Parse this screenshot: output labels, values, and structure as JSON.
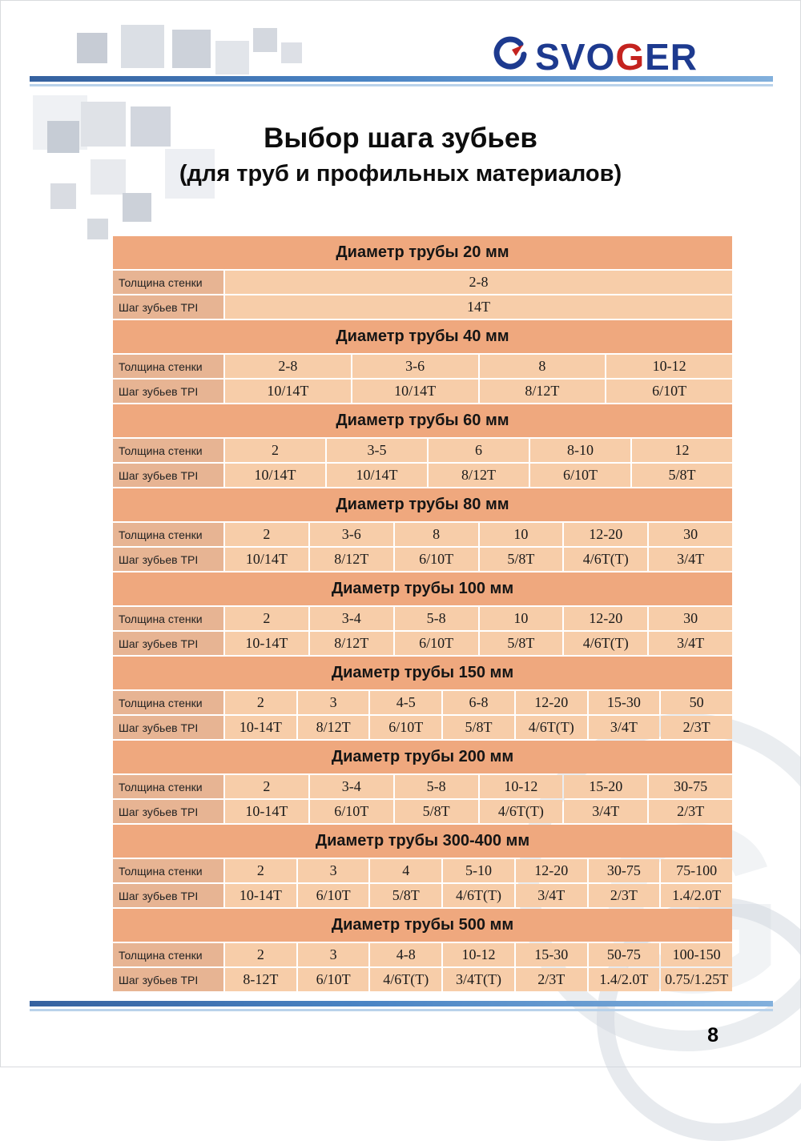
{
  "logo": {
    "part1": "SVO",
    "part2": "G",
    "part3": "ER"
  },
  "title": {
    "line1": "Выбор шага зубьев",
    "line2": "(для труб и профильных материалов)"
  },
  "labels": {
    "thickness": "Толщина стенки",
    "tpi": "Шаг зубьев TPI"
  },
  "tables": [
    {
      "title": "Диаметр трубы 20 мм",
      "thickness": [
        "2-8"
      ],
      "tpi": [
        "14T"
      ]
    },
    {
      "title": "Диаметр трубы 40 мм",
      "thickness": [
        "2-8",
        "3-6",
        "8",
        "10-12"
      ],
      "tpi": [
        "10/14T",
        "10/14T",
        "8/12T",
        "6/10T"
      ]
    },
    {
      "title": "Диаметр трубы 60 мм",
      "thickness": [
        "2",
        "3-5",
        "6",
        "8-10",
        "12"
      ],
      "tpi": [
        "10/14T",
        "10/14T",
        "8/12T",
        "6/10T",
        "5/8T"
      ]
    },
    {
      "title": "Диаметр трубы 80 мм",
      "thickness": [
        "2",
        "3-6",
        "8",
        "10",
        "12-20",
        "30"
      ],
      "tpi": [
        "10/14T",
        "8/12T",
        "6/10T",
        "5/8T",
        "4/6T(T)",
        "3/4T"
      ]
    },
    {
      "title": "Диаметр трубы 100 мм",
      "thickness": [
        "2",
        "3-4",
        "5-8",
        "10",
        "12-20",
        "30"
      ],
      "tpi": [
        "10-14T",
        "8/12T",
        "6/10T",
        "5/8T",
        "4/6T(T)",
        "3/4T"
      ]
    },
    {
      "title": "Диаметр трубы 150 мм",
      "thickness": [
        "2",
        "3",
        "4-5",
        "6-8",
        "12-20",
        "15-30",
        "50"
      ],
      "tpi": [
        "10-14T",
        "8/12T",
        "6/10T",
        "5/8T",
        "4/6T(T)",
        "3/4T",
        "2/3T"
      ]
    },
    {
      "title": "Диаметр трубы 200 мм",
      "thickness": [
        "2",
        "3-4",
        "5-8",
        "10-12",
        "15-20",
        "30-75"
      ],
      "tpi": [
        "10-14T",
        "6/10T",
        "5/8T",
        "4/6T(T)",
        "3/4T",
        "2/3T"
      ]
    },
    {
      "title": "Диаметр трубы 300-400 мм",
      "thickness": [
        "2",
        "3",
        "4",
        "5-10",
        "12-20",
        "30-75",
        "75-100"
      ],
      "tpi": [
        "10-14T",
        "6/10T",
        "5/8T",
        "4/6T(T)",
        "3/4T",
        "2/3T",
        "1.4/2.0T"
      ]
    },
    {
      "title": "Диаметр трубы 500 мм",
      "thickness": [
        "2",
        "3",
        "4-8",
        "10-12",
        "15-30",
        "50-75",
        "100-150"
      ],
      "tpi": [
        "8-12T",
        "6/10T",
        "4/6T(T)",
        "3/4T(T)",
        "2/3T",
        "1.4/2.0T",
        "0.75/1.25T"
      ]
    }
  ],
  "watermark_letter": "G",
  "page_number": "8",
  "colors": {
    "accent_blue": "#35619f",
    "logo_blue": "#1d3a8f",
    "logo_red": "#c4231f",
    "band_orange": "#efa87e",
    "cell_peach": "#f7cda9",
    "label_peach": "#e7b493"
  }
}
